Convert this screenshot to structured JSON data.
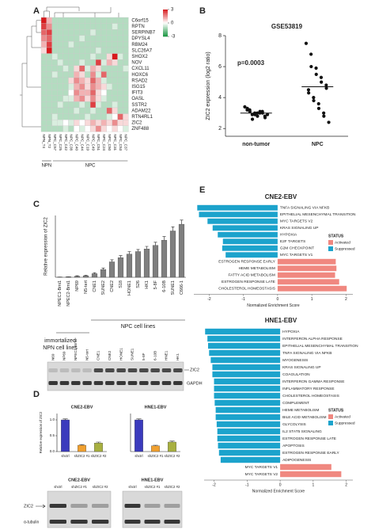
{
  "panel_labels": [
    "A",
    "B",
    "C",
    "D",
    "E"
  ],
  "chart_data": [
    {
      "type": "heatmap",
      "rows": [
        "C6orf15",
        "RPTN",
        "SERPINB7",
        "DPYSL4",
        "RBM24",
        "SLC26A7",
        "SHOX2",
        "NOV",
        "CXCL11",
        "HOXC6",
        "RSAD2",
        "ISG15",
        "IFIT3",
        "OASL",
        "SSTR2",
        "ADAM22",
        "RTN4RL1",
        "ZIC2",
        "ZNF488"
      ],
      "columns": [
        "NPN_T4",
        "NPN_T2",
        "NPC_C57",
        "NPC_C25",
        "NPC_C42",
        "NPC_C38",
        "NPC_C40",
        "NPC_C44",
        "NPC_C19",
        "NPC_C49",
        "NPC_C51",
        "NPC_C24",
        "NPC_C50",
        "NPC_C31",
        "NPC_C53",
        "NPC_C37"
      ],
      "groups": [
        "NPN",
        "NPC"
      ],
      "values": [
        [
          3,
          1,
          -1,
          -1,
          -1,
          -1,
          -1,
          -1,
          -1,
          -1,
          -1,
          -1,
          -1,
          -1,
          -1,
          -1
        ],
        [
          2.5,
          1.5,
          -1,
          -1,
          -1,
          -1,
          -1,
          -1,
          -1,
          -1,
          -1,
          -1,
          -1,
          -0.5,
          -1,
          -1
        ],
        [
          2,
          2.5,
          -1,
          -1,
          -1,
          -1,
          -1,
          -1,
          -1,
          -0.5,
          -1,
          -1,
          -1,
          -1,
          -1,
          -1
        ],
        [
          1.5,
          2,
          -1,
          -1,
          -1,
          -1,
          -1,
          -0.5,
          -1,
          -1,
          -1,
          -1,
          -1,
          -1,
          -1,
          -1
        ],
        [
          1,
          2.5,
          -1,
          -1,
          -1,
          -0.5,
          -1,
          -1,
          -1,
          -1,
          -1,
          -1,
          -1,
          -1,
          -1,
          -1
        ],
        [
          0.5,
          3,
          -1,
          -1,
          -1,
          -1,
          -1,
          -1,
          -1,
          -1,
          -0.5,
          -1,
          -1,
          -1,
          -1,
          -1
        ],
        [
          -1,
          -1,
          -0.5,
          -1,
          -1,
          -1,
          -1,
          -1,
          -1,
          -0.5,
          -1,
          -1,
          0.5,
          3,
          -0.5,
          -1
        ],
        [
          -1,
          -1,
          -1,
          -0.5,
          -1,
          -1,
          -1,
          -0.5,
          -1,
          -1,
          2.5,
          -0.5,
          1,
          0.5,
          -1,
          -1
        ],
        [
          -1,
          -1,
          -1,
          -1,
          -0.5,
          -1,
          0.5,
          2,
          -0.5,
          1,
          0.5,
          -1,
          -1,
          -1,
          -1,
          -0.5
        ],
        [
          -1,
          -1,
          -0.5,
          -1,
          -1,
          -1,
          1,
          0.5,
          -1,
          1.5,
          -0.5,
          2,
          -1,
          -1,
          -1,
          -1
        ],
        [
          -1,
          -1,
          -1,
          -1,
          -1,
          0.5,
          1.5,
          1,
          0.5,
          2,
          1,
          -0.5,
          -1,
          -1,
          -1,
          -1
        ],
        [
          -1,
          -1,
          -1,
          -1,
          -1,
          -0.5,
          1,
          1.5,
          0.5,
          1.5,
          1,
          0.5,
          -0.5,
          -1,
          -1,
          -1
        ],
        [
          -1,
          -1,
          -1,
          -1,
          -1,
          0,
          1.5,
          1,
          1,
          2,
          0.5,
          0,
          -1,
          -1,
          -1,
          -1
        ],
        [
          -1,
          -1,
          -1,
          -1,
          -0.5,
          -0.5,
          1,
          1.5,
          0.5,
          1.5,
          0.5,
          -0.5,
          -1,
          -1,
          -1,
          -1
        ],
        [
          -1,
          -1,
          -1,
          -0.5,
          -1,
          -1,
          -1,
          -0.5,
          -1,
          2.5,
          -0.5,
          -1,
          -1,
          -0.5,
          -1,
          -1
        ],
        [
          -1,
          -1,
          -1,
          -1,
          -1,
          -1,
          -0.5,
          -1,
          -1,
          -0.5,
          -1,
          -1,
          2,
          0.5,
          -1,
          -1
        ],
        [
          -1,
          -1,
          -0.5,
          -1,
          -1,
          -1,
          -1,
          -1,
          -0.5,
          -1,
          -1,
          -1,
          -0.5,
          0,
          2,
          0.5
        ],
        [
          -1,
          -1,
          -0.5,
          -0.5,
          0,
          -0.5,
          0.5,
          0,
          0.5,
          1,
          0.5,
          1,
          0.5,
          1.5,
          0.5,
          0.5
        ],
        [
          -1,
          -1,
          -1,
          -1,
          -0.5,
          -1,
          0,
          -0.5,
          0,
          0.5,
          1.5,
          0.5,
          0,
          0.5,
          0,
          -0.5
        ]
      ],
      "zlim": [
        -3,
        3
      ],
      "zticks": [
        3,
        0,
        -3
      ],
      "colors": [
        "#1a9641",
        "#ffffff",
        "#d7191c"
      ]
    },
    {
      "type": "scatter",
      "title": "GSE53819",
      "y_label": "ZIC2 expression (log2 ratio)",
      "annotation": "p=0.0003",
      "categories": [
        "non-tumor",
        "NPC"
      ],
      "series": [
        {
          "values": [
            3.4,
            3.2,
            3.1,
            3.0,
            2.9,
            3.0,
            3.1,
            2.8,
            2.7,
            3.2,
            3.3,
            2.9,
            2.6,
            3.0,
            2.8,
            3.1,
            3.0,
            2.9
          ]
        },
        {
          "values": [
            7.5,
            6.8,
            6.0,
            5.9,
            5.5,
            5.3,
            5.0,
            4.8,
            4.6,
            4.5,
            4.3,
            4.0,
            3.8,
            3.6,
            3.3,
            3.0,
            2.8,
            2.4
          ]
        }
      ],
      "means": [
        3.0,
        4.7
      ],
      "color": "#111111",
      "ylim": [
        1.5,
        8
      ],
      "yticks": [
        2,
        4,
        6,
        8
      ]
    },
    {
      "type": "bar",
      "y_label": "Relative expression of ZIC2",
      "categories": [
        "NPEC1-Bmi1",
        "NPEC2-Bmi1",
        "NP69",
        "N5-tert",
        "CNE1",
        "SUNE2",
        "CNE2",
        "S18",
        "HONE1",
        "S26",
        "HK1",
        "5-8F",
        "6-10B",
        "SUNE1",
        "C666-1"
      ],
      "values": [
        0.005,
        0.01,
        0.02,
        0.03,
        0.07,
        0.15,
        0.3,
        0.38,
        0.45,
        0.5,
        0.55,
        0.62,
        0.72,
        0.9,
        1.03
      ],
      "errors": [
        0,
        0,
        0.01,
        0.01,
        0.02,
        0.03,
        0.04,
        0.04,
        0.05,
        0.04,
        0.05,
        0.06,
        0.07,
        0.08,
        0.08
      ],
      "color": "#7f7f7f",
      "ylim": [
        0,
        1.2
      ],
      "group_labels": [
        "NPC cell lines",
        "immortalized",
        "NPN cell lines"
      ]
    },
    {
      "type": "bar",
      "title": "CNE2-EBV",
      "y_label": "Relative expression of ZIC2",
      "categories": [
        "shctrl",
        "shZIC2 #1",
        "shZIC2 #2"
      ],
      "values": [
        1.0,
        0.2,
        0.27
      ],
      "errors": [
        0.03,
        0.02,
        0.03
      ],
      "colors": [
        "#3b3bbd",
        "#f0a030",
        "#a8b040"
      ],
      "ylim": [
        0,
        1.2
      ],
      "yticks": [
        {
          "value": 0,
          "label": "0.0"
        },
        {
          "value": 0.5,
          "label": "0.5"
        },
        {
          "value": 1,
          "label": "1.0"
        }
      ]
    },
    {
      "type": "bar",
      "title": "HNE1-EBV",
      "categories": [
        "shctrl",
        "shZIC2 #1",
        "shZIC2 #2"
      ],
      "values": [
        1.0,
        0.18,
        0.3
      ],
      "errors": [
        0.03,
        0.02,
        0.03
      ],
      "colors": [
        "#3b3bbd",
        "#f0a030",
        "#a8b040"
      ],
      "ylim": [
        0,
        1.2
      ]
    },
    {
      "type": "hbar",
      "title": "CNE2-EBV",
      "x_label": "Normalized Enrichment Score",
      "categories": [
        "TNFA SIGNALING VIA NFKB",
        "EPITHELIAL MESENCHYMAL TRANSITION",
        "MYC TARGETS V2",
        "KRAS SIGNALING UP",
        "HYPOXIA",
        "E2F TARGETS",
        "G2M CHECKPOINT",
        "MYC TARGETS V1",
        "ESTROGEN RESPONSE EARLY",
        "HEME METABOLISM",
        "FATTY ACID METABOLISM",
        "ESTROGEN RESPONSE LATE",
        "CHOLESTEROL HOMEOSTASIS"
      ],
      "series": [
        {
          "name": "Activated",
          "color": "#f08880",
          "values": [
            null,
            null,
            null,
            null,
            null,
            null,
            null,
            null,
            1.7,
            1.72,
            1.68,
            1.8,
            2.02
          ]
        },
        {
          "name": "Suppressed",
          "color": "#1ca3cc",
          "values": [
            -2.35,
            -2.3,
            -2.05,
            -1.9,
            -1.75,
            -1.6,
            -1.62,
            -1.52,
            null,
            null,
            null,
            null,
            null
          ]
        }
      ],
      "xlim": [
        -2.45,
        2.2
      ],
      "xticks": [
        -2,
        -1,
        0,
        1,
        2
      ],
      "legend_title": "STATUS",
      "legend": "right"
    },
    {
      "type": "hbar",
      "title": "HNE1-EBV",
      "x_label": "Normalized Enrichment Score",
      "categories": [
        "HYPOXIA",
        "INTERFERON ALPHA RESPONSE",
        "EPITHELIAL MESENCHYMAL TRANSITION",
        "TNFA SIGNALING VIA NFKB",
        "MYOGENESIS",
        "KRAS SIGNALING UP",
        "COAGULATION",
        "INTERFERON GAMMA RESPONSE",
        "INFLAMMATORY RESPONSE",
        "CHOLESTEROL HOMEOSTASIS",
        "COMPLEMENT",
        "HEME METABOLISM",
        "BILE ACID METABOLISM",
        "GLYCOLYSIS",
        "IL2 STAT5 SIGNALING",
        "ESTROGEN RESPONSE LATE",
        "APOPTOSIS",
        "ESTROGEN RESPONSE EARLY",
        "ADIPOGENESIS",
        "MYC TARGETS V1",
        "MYC TARGETS V2"
      ],
      "series": [
        {
          "name": "Activated",
          "color": "#f08880",
          "values": [
            null,
            null,
            null,
            null,
            null,
            null,
            null,
            null,
            null,
            null,
            null,
            null,
            null,
            null,
            null,
            null,
            null,
            null,
            null,
            1.55,
            1.85
          ]
        },
        {
          "name": "Suppressed",
          "color": "#1ca3cc",
          "values": [
            -2.27,
            -2.2,
            -2.18,
            -2.15,
            -2.1,
            -2.05,
            -2.05,
            -2.0,
            -2.0,
            -2.0,
            -1.98,
            -1.95,
            -1.95,
            -1.92,
            -1.9,
            -1.9,
            -1.88,
            -1.85,
            -1.8,
            null,
            null
          ]
        }
      ],
      "xlim": [
        -2.3,
        2.2
      ],
      "xticks": [
        -2,
        -1,
        0,
        1,
        2
      ],
      "legend_title": "STATUS",
      "legend": "right"
    }
  ],
  "blots": [
    {
      "lanes": [
        "N69",
        "NP69",
        "NPEC1-Bmi1",
        "N5-tert",
        "CNE1",
        "CNE2",
        "HONE1",
        "SUNE1",
        "5-8F",
        "6-10B",
        "HNE1",
        "HK1"
      ],
      "rows": [
        "ZIC2",
        "GAPDH"
      ]
    },
    {
      "title": "CNE2-EBV",
      "lanes": [
        "shctrl",
        "shZIC2 #1",
        "shZIC2 #2"
      ],
      "rows": [
        "ZIC2",
        "α-tubulin"
      ]
    },
    {
      "title": "HNE1-EBV",
      "lanes": [
        "shctrl",
        "shZIC2 #1",
        "shZIC2 #2"
      ]
    }
  ]
}
